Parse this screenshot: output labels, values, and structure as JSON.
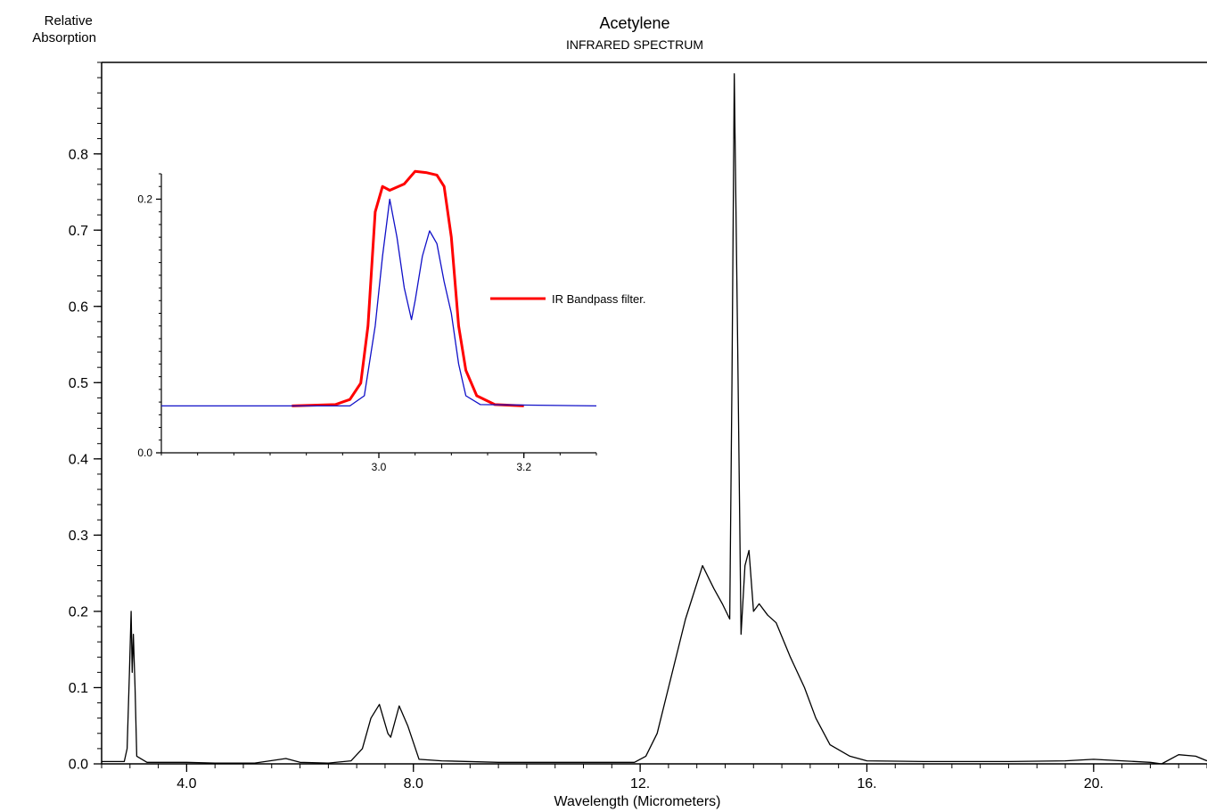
{
  "chart_data": [
    {
      "type": "line",
      "title": "Acetylene",
      "subtitle": "INFRARED SPECTRUM",
      "xlabel": "Wavelength (Micrometers)",
      "ylabel": "Relative\nAbsorption",
      "xlim": [
        2.5,
        22.0
      ],
      "ylim": [
        0.0,
        0.92
      ],
      "x_ticks": [
        {
          "value": 4.0,
          "label": "4.0"
        },
        {
          "value": 8.0,
          "label": "8.0"
        },
        {
          "value": 12.0,
          "label": "12."
        },
        {
          "value": 16.0,
          "label": "16."
        },
        {
          "value": 20.0,
          "label": "20."
        }
      ],
      "y_ticks": [
        {
          "value": 0.0,
          "label": "0.0"
        },
        {
          "value": 0.1,
          "label": "0.1"
        },
        {
          "value": 0.2,
          "label": "0.2"
        },
        {
          "value": 0.3,
          "label": "0.3"
        },
        {
          "value": 0.4,
          "label": "0.4"
        },
        {
          "value": 0.5,
          "label": "0.5"
        },
        {
          "value": 0.6,
          "label": "0.6"
        },
        {
          "value": 0.7,
          "label": "0.7"
        },
        {
          "value": 0.8,
          "label": "0.8"
        }
      ],
      "grid": false,
      "series": [
        {
          "color": "#000000",
          "points": [
            [
              2.5,
              0.003
            ],
            [
              2.9,
              0.003
            ],
            [
              2.95,
              0.02
            ],
            [
              2.99,
              0.12
            ],
            [
              3.02,
              0.2
            ],
            [
              3.04,
              0.12
            ],
            [
              3.06,
              0.17
            ],
            [
              3.09,
              0.1
            ],
            [
              3.12,
              0.01
            ],
            [
              3.3,
              0.002
            ],
            [
              4.0,
              0.002
            ],
            [
              4.5,
              0.001
            ],
            [
              5.2,
              0.001
            ],
            [
              5.75,
              0.007
            ],
            [
              6.0,
              0.002
            ],
            [
              6.5,
              0.001
            ],
            [
              6.9,
              0.004
            ],
            [
              7.1,
              0.02
            ],
            [
              7.25,
              0.06
            ],
            [
              7.4,
              0.078
            ],
            [
              7.55,
              0.04
            ],
            [
              7.6,
              0.035
            ],
            [
              7.75,
              0.076
            ],
            [
              7.9,
              0.05
            ],
            [
              8.1,
              0.006
            ],
            [
              8.5,
              0.004
            ],
            [
              9.5,
              0.002
            ],
            [
              11.0,
              0.002
            ],
            [
              11.9,
              0.002
            ],
            [
              12.1,
              0.01
            ],
            [
              12.3,
              0.04
            ],
            [
              12.5,
              0.1
            ],
            [
              12.8,
              0.19
            ],
            [
              13.1,
              0.26
            ],
            [
              13.3,
              0.23
            ],
            [
              13.45,
              0.21
            ],
            [
              13.58,
              0.19
            ],
            [
              13.62,
              0.5
            ],
            [
              13.66,
              0.905
            ],
            [
              13.72,
              0.55
            ],
            [
              13.78,
              0.17
            ],
            [
              13.85,
              0.26
            ],
            [
              13.92,
              0.28
            ],
            [
              14.0,
              0.2
            ],
            [
              14.1,
              0.21
            ],
            [
              14.25,
              0.195
            ],
            [
              14.4,
              0.185
            ],
            [
              14.65,
              0.14
            ],
            [
              14.9,
              0.1
            ],
            [
              15.1,
              0.06
            ],
            [
              15.35,
              0.025
            ],
            [
              15.7,
              0.01
            ],
            [
              16.0,
              0.004
            ],
            [
              17.0,
              0.003
            ],
            [
              18.5,
              0.003
            ],
            [
              19.5,
              0.004
            ],
            [
              20.0,
              0.006
            ],
            [
              21.0,
              0.002
            ],
            [
              21.2,
              0.0
            ],
            [
              21.5,
              0.012
            ],
            [
              21.8,
              0.01
            ],
            [
              22.0,
              0.004
            ]
          ]
        }
      ]
    },
    {
      "type": "line",
      "xlim": [
        2.7,
        3.3
      ],
      "ylim": [
        0.0,
        0.22
      ],
      "x_ticks": [
        {
          "value": 3.0,
          "label": "3.0"
        },
        {
          "value": 3.2,
          "label": "3.2"
        }
      ],
      "y_ticks": [
        {
          "value": 0.0,
          "label": "0.0"
        },
        {
          "value": 0.2,
          "label": "0.2"
        }
      ],
      "legend_position": "right",
      "series": [
        {
          "name": "IR Bandpass filter.",
          "color": "#ff0000",
          "points": [
            [
              2.88,
              0.037
            ],
            [
              2.94,
              0.038
            ],
            [
              2.96,
              0.042
            ],
            [
              2.975,
              0.055
            ],
            [
              2.985,
              0.1
            ],
            [
              2.995,
              0.19
            ],
            [
              3.005,
              0.21
            ],
            [
              3.015,
              0.207
            ],
            [
              3.035,
              0.212
            ],
            [
              3.05,
              0.222
            ],
            [
              3.065,
              0.221
            ],
            [
              3.08,
              0.219
            ],
            [
              3.09,
              0.21
            ],
            [
              3.1,
              0.17
            ],
            [
              3.11,
              0.1
            ],
            [
              3.12,
              0.065
            ],
            [
              3.135,
              0.045
            ],
            [
              3.16,
              0.038
            ],
            [
              3.2,
              0.037
            ]
          ]
        },
        {
          "color": "#1010c8",
          "points": [
            [
              2.7,
              0.037
            ],
            [
              2.96,
              0.037
            ],
            [
              2.98,
              0.045
            ],
            [
              2.995,
              0.1
            ],
            [
              3.005,
              0.155
            ],
            [
              3.015,
              0.2
            ],
            [
              3.025,
              0.17
            ],
            [
              3.035,
              0.13
            ],
            [
              3.045,
              0.105
            ],
            [
              3.05,
              0.12
            ],
            [
              3.06,
              0.155
            ],
            [
              3.07,
              0.175
            ],
            [
              3.08,
              0.165
            ],
            [
              3.09,
              0.135
            ],
            [
              3.1,
              0.11
            ],
            [
              3.11,
              0.07
            ],
            [
              3.12,
              0.045
            ],
            [
              3.14,
              0.038
            ],
            [
              3.3,
              0.037
            ]
          ]
        }
      ]
    }
  ]
}
